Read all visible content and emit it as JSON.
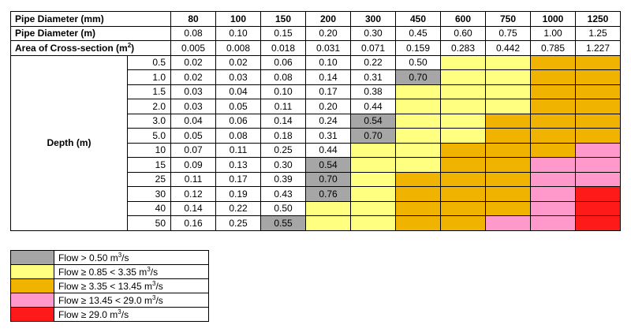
{
  "headers": {
    "diameter_mm": "Pipe Diameter (mm)",
    "diameter_m": "Pipe Diameter (m)",
    "area_prefix": "Area of Cross-section (m",
    "area_sup": "2",
    "area_suffix": ")",
    "depth": "Depth (m)"
  },
  "diameters_mm": [
    "80",
    "100",
    "150",
    "200",
    "300",
    "450",
    "600",
    "750",
    "1000",
    "1250"
  ],
  "diameters_m": [
    "0.08",
    "0.10",
    "0.15",
    "0.20",
    "0.30",
    "0.45",
    "0.60",
    "0.75",
    "1.00",
    "1.25"
  ],
  "areas": [
    "0.005",
    "0.008",
    "0.018",
    "0.031",
    "0.071",
    "0.159",
    "0.283",
    "0.442",
    "0.785",
    "1.227"
  ],
  "rows": [
    {
      "depth": "0.5",
      "values": [
        "0.02",
        "0.02",
        "0.06",
        "0.10",
        "0.22",
        "0.50",
        "",
        "",
        "",
        ""
      ],
      "colors": [
        "",
        "",
        "",
        "",
        "",
        "",
        "yellow",
        "yellow",
        "orange",
        "orange"
      ]
    },
    {
      "depth": "1.0",
      "values": [
        "0.02",
        "0.03",
        "0.08",
        "0.14",
        "0.31",
        "0.70",
        "",
        "",
        "",
        ""
      ],
      "colors": [
        "",
        "",
        "",
        "",
        "",
        "gray",
        "yellow",
        "yellow",
        "orange",
        "orange"
      ]
    },
    {
      "depth": "1.5",
      "values": [
        "0.03",
        "0.04",
        "0.10",
        "0.17",
        "0.38",
        "",
        "",
        "",
        "",
        ""
      ],
      "colors": [
        "",
        "",
        "",
        "",
        "",
        "yellow",
        "yellow",
        "yellow",
        "orange",
        "orange"
      ]
    },
    {
      "depth": "2.0",
      "values": [
        "0.03",
        "0.05",
        "0.11",
        "0.20",
        "0.44",
        "",
        "",
        "",
        "",
        ""
      ],
      "colors": [
        "",
        "",
        "",
        "",
        "",
        "yellow",
        "yellow",
        "yellow",
        "orange",
        "orange"
      ]
    },
    {
      "depth": "3.0",
      "values": [
        "0.04",
        "0.06",
        "0.14",
        "0.24",
        "0.54",
        "",
        "",
        "",
        "",
        ""
      ],
      "colors": [
        "",
        "",
        "",
        "",
        "gray",
        "yellow",
        "yellow",
        "orange",
        "orange",
        "orange"
      ]
    },
    {
      "depth": "5.0",
      "values": [
        "0.05",
        "0.08",
        "0.18",
        "0.31",
        "0.70",
        "",
        "",
        "",
        "",
        ""
      ],
      "colors": [
        "",
        "",
        "",
        "",
        "gray",
        "yellow",
        "yellow",
        "orange",
        "orange",
        "orange"
      ]
    },
    {
      "depth": "10",
      "values": [
        "0.07",
        "0.11",
        "0.25",
        "0.44",
        "",
        "",
        "",
        "",
        "",
        ""
      ],
      "colors": [
        "",
        "",
        "",
        "",
        "yellow",
        "yellow",
        "orange",
        "orange",
        "orange",
        "pink"
      ]
    },
    {
      "depth": "15",
      "values": [
        "0.09",
        "0.13",
        "0.30",
        "0.54",
        "",
        "",
        "",
        "",
        "",
        ""
      ],
      "colors": [
        "",
        "",
        "",
        "gray",
        "yellow",
        "yellow",
        "orange",
        "orange",
        "pink",
        "pink"
      ]
    },
    {
      "depth": "25",
      "values": [
        "0.11",
        "0.17",
        "0.39",
        "0.70",
        "",
        "",
        "",
        "",
        "",
        ""
      ],
      "colors": [
        "",
        "",
        "",
        "gray",
        "yellow",
        "orange",
        "orange",
        "orange",
        "pink",
        "pink"
      ]
    },
    {
      "depth": "30",
      "values": [
        "0.12",
        "0.19",
        "0.43",
        "0.76",
        "",
        "",
        "",
        "",
        "",
        ""
      ],
      "colors": [
        "",
        "",
        "",
        "gray",
        "yellow",
        "orange",
        "orange",
        "orange",
        "pink",
        "red"
      ]
    },
    {
      "depth": "40",
      "values": [
        "0.14",
        "0.22",
        "0.50",
        "",
        "",
        "",
        "",
        "",
        "",
        ""
      ],
      "colors": [
        "",
        "",
        "",
        "yellow",
        "yellow",
        "orange",
        "orange",
        "orange",
        "pink",
        "red"
      ]
    },
    {
      "depth": "50",
      "values": [
        "0.16",
        "0.25",
        "0.55",
        "",
        "",
        "",
        "",
        "",
        "",
        ""
      ],
      "colors": [
        "",
        "",
        "gray",
        "yellow",
        "yellow",
        "orange",
        "orange",
        "pink",
        "pink",
        "red"
      ]
    }
  ],
  "legend": [
    {
      "color": "gray",
      "prefix": "Flow > 0.50 m",
      "sup": "3",
      "suffix": "/s"
    },
    {
      "color": "yellow",
      "prefix": "Flow ≥ 0.85 < 3.35 m",
      "sup": "3",
      "suffix": "/s"
    },
    {
      "color": "orange",
      "prefix": "Flow ≥ 3.35 < 13.45 m",
      "sup": "3",
      "suffix": "/s"
    },
    {
      "color": "pink",
      "prefix": "Flow ≥ 13.45 < 29.0 m",
      "sup": "3",
      "suffix": "/s"
    },
    {
      "color": "red",
      "prefix": "Flow ≥ 29.0 m",
      "sup": "3",
      "suffix": "/s"
    }
  ],
  "palette": {
    "gray": "#a6a6a6",
    "yellow": "#ffff80",
    "orange": "#f0b400",
    "pink": "#ff99cc",
    "red": "#ff1a1a"
  }
}
